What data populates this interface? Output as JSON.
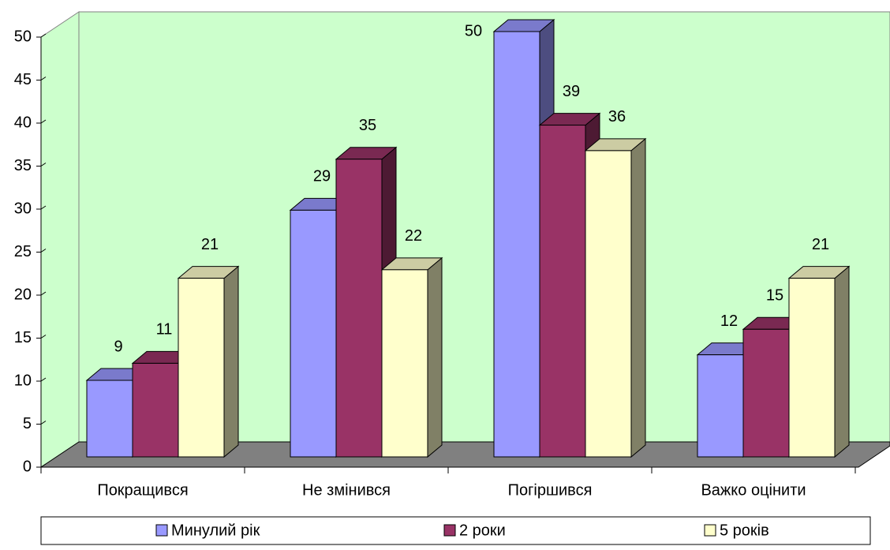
{
  "chart_data": {
    "type": "bar3d",
    "categories": [
      "Покращився",
      "Не змінився",
      "Погіршився",
      "Важко оцінити"
    ],
    "series": [
      {
        "name": "Минулий рік",
        "color": "#9999ff",
        "values": [
          9,
          29,
          50,
          12
        ]
      },
      {
        "name": "2 роки",
        "color": "#993366",
        "values": [
          11,
          35,
          39,
          15
        ]
      },
      {
        "name": "5 років",
        "color": "#ffffcc",
        "values": [
          21,
          22,
          36,
          21
        ]
      }
    ],
    "ylim": [
      0,
      50
    ],
    "yticks": [
      0,
      5,
      10,
      15,
      20,
      25,
      30,
      35,
      40,
      45,
      50
    ],
    "wall_color": "#ccffcc",
    "floor_color": "#808080",
    "legend": "bottom"
  }
}
